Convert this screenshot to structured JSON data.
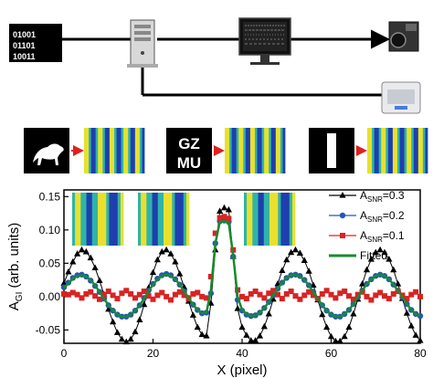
{
  "top_schematic": {
    "binary_data": [
      "01001",
      "01101",
      "10011"
    ]
  },
  "pattern_panels": [
    {
      "object_text": []
    },
    {
      "object_text": [
        "GZ",
        "MU"
      ]
    },
    {
      "object_text": []
    }
  ],
  "colors": {
    "stripe_dark": "#1f3fae",
    "stripe_mid": "#2fb4a8",
    "stripe_light": "#e9e02e",
    "arrow_red": "#e0201b",
    "series_snr03": "#000000",
    "series_snr02": "#2456b8",
    "series_snr01": "#d92323",
    "series_fitted": "#1a8a2e"
  },
  "chart_data": {
    "type": "line",
    "xlabel": "X (pixel)",
    "ylabel": "A_GI (arb. units)",
    "xlim": [
      0,
      80
    ],
    "ylim": [
      -0.07,
      0.16
    ],
    "x_ticks": [
      0,
      20,
      40,
      60,
      80
    ],
    "x_tick_labels": [
      "0",
      "20",
      "40",
      "60",
      "80"
    ],
    "y_ticks": [
      -0.05,
      0.0,
      0.05,
      0.1,
      0.15
    ],
    "y_tick_labels": [
      "-0.05",
      "0.00",
      "0.05",
      "0.10",
      "0.15"
    ],
    "legend_position": "top-right",
    "legend": [
      {
        "label": "A_SNR=0.3",
        "marker": "triangle",
        "color": "#000000"
      },
      {
        "label": "A_SNR=0.2",
        "marker": "circle",
        "color": "#2456b8"
      },
      {
        "label": "A_SNR=0.1",
        "marker": "square",
        "color": "#d92323"
      },
      {
        "label": "Fitted",
        "marker": "line",
        "color": "#1a8a2e"
      }
    ],
    "series": [
      {
        "name": "A_SNR=0.3",
        "x": [
          0,
          1,
          2,
          3,
          4,
          5,
          6,
          7,
          8,
          9,
          10,
          11,
          12,
          13,
          14,
          15,
          16,
          17,
          18,
          19,
          20,
          21,
          22,
          23,
          24,
          25,
          26,
          27,
          28,
          29,
          30,
          31,
          32,
          33,
          34,
          35,
          36,
          37,
          38,
          39,
          40,
          41,
          42,
          43,
          44,
          45,
          46,
          47,
          48,
          49,
          50,
          51,
          52,
          53,
          54,
          55,
          56,
          57,
          58,
          59,
          60,
          61,
          62,
          63,
          64,
          65,
          66,
          67,
          68,
          69,
          70,
          71,
          72,
          73,
          74,
          75,
          76,
          77,
          78,
          79,
          80
        ],
        "y": [
          0.02,
          0.037,
          0.052,
          0.064,
          0.07,
          0.067,
          0.058,
          0.043,
          0.024,
          0.003,
          -0.019,
          -0.038,
          -0.054,
          -0.064,
          -0.068,
          -0.064,
          -0.053,
          -0.035,
          -0.012,
          0.013,
          0.036,
          0.055,
          0.067,
          0.07,
          0.064,
          0.052,
          0.034,
          0.014,
          -0.007,
          -0.028,
          -0.046,
          -0.057,
          -0.059,
          -0.01,
          0.07,
          0.128,
          0.133,
          0.13,
          0.06,
          -0.018,
          -0.046,
          -0.058,
          -0.066,
          -0.066,
          -0.059,
          -0.045,
          -0.026,
          -0.004,
          0.019,
          0.039,
          0.055,
          0.066,
          0.07,
          0.065,
          0.054,
          0.038,
          0.017,
          -0.005,
          -0.027,
          -0.046,
          -0.06,
          -0.067,
          -0.067,
          -0.06,
          -0.046,
          -0.026,
          -0.004,
          0.019,
          0.04,
          0.056,
          0.066,
          0.07,
          0.066,
          0.056,
          0.04,
          0.019,
          -0.003,
          -0.025,
          -0.044,
          -0.058,
          -0.066
        ]
      },
      {
        "name": "A_SNR=0.2",
        "x": [
          0,
          1,
          2,
          3,
          4,
          5,
          6,
          7,
          8,
          9,
          10,
          11,
          12,
          13,
          14,
          15,
          16,
          17,
          18,
          19,
          20,
          21,
          22,
          23,
          24,
          25,
          26,
          27,
          28,
          29,
          30,
          31,
          32,
          33,
          34,
          35,
          36,
          37,
          38,
          39,
          40,
          41,
          42,
          43,
          44,
          45,
          46,
          47,
          48,
          49,
          50,
          51,
          52,
          53,
          54,
          55,
          56,
          57,
          58,
          59,
          60,
          61,
          62,
          63,
          64,
          65,
          66,
          67,
          68,
          69,
          70,
          71,
          72,
          73,
          74,
          75,
          76,
          77,
          78,
          79,
          80
        ],
        "y": [
          0.014,
          0.021,
          0.028,
          0.032,
          0.033,
          0.03,
          0.024,
          0.016,
          0.007,
          -0.003,
          -0.013,
          -0.021,
          -0.027,
          -0.03,
          -0.03,
          -0.027,
          -0.021,
          -0.013,
          -0.002,
          0.009,
          0.019,
          0.027,
          0.032,
          0.034,
          0.032,
          0.026,
          0.018,
          0.008,
          -0.002,
          -0.012,
          -0.02,
          -0.025,
          -0.024,
          0.005,
          0.08,
          0.113,
          0.114,
          0.112,
          0.06,
          -0.005,
          -0.021,
          -0.027,
          -0.029,
          -0.028,
          -0.024,
          -0.017,
          -0.008,
          0.002,
          0.012,
          0.021,
          0.028,
          0.032,
          0.033,
          0.031,
          0.025,
          0.017,
          0.007,
          -0.003,
          -0.013,
          -0.021,
          -0.027,
          -0.03,
          -0.03,
          -0.026,
          -0.02,
          -0.011,
          -0.001,
          0.009,
          0.019,
          0.026,
          0.031,
          0.033,
          0.031,
          0.026,
          0.018,
          0.009,
          -0.001,
          -0.011,
          -0.02,
          -0.026,
          -0.029
        ]
      },
      {
        "name": "A_SNR=0.1",
        "x": [
          0,
          1,
          2,
          3,
          4,
          5,
          6,
          7,
          8,
          9,
          10,
          11,
          12,
          13,
          14,
          15,
          16,
          17,
          18,
          19,
          20,
          21,
          22,
          23,
          24,
          25,
          26,
          27,
          28,
          29,
          30,
          31,
          32,
          33,
          34,
          35,
          36,
          37,
          38,
          39,
          40,
          41,
          42,
          43,
          44,
          45,
          46,
          47,
          48,
          49,
          50,
          51,
          52,
          53,
          54,
          55,
          56,
          57,
          58,
          59,
          60,
          61,
          62,
          63,
          64,
          65,
          66,
          67,
          68,
          69,
          70,
          71,
          72,
          73,
          74,
          75,
          76,
          77,
          78,
          79,
          80
        ],
        "y": [
          0.004,
          0.003,
          0.006,
          0.003,
          -0.002,
          0.004,
          0.007,
          0.001,
          -0.004,
          0.003,
          0.008,
          0.002,
          -0.003,
          0.005,
          0.009,
          0.004,
          -0.002,
          0.003,
          0.008,
          0.001,
          -0.004,
          0.002,
          0.006,
          0.0,
          -0.005,
          0.003,
          0.007,
          0.002,
          -0.003,
          0.004,
          0.006,
          0.0,
          -0.002,
          0.03,
          0.095,
          0.118,
          0.12,
          0.117,
          0.07,
          0.01,
          0.0,
          -0.003,
          0.004,
          0.008,
          0.003,
          -0.002,
          0.005,
          0.009,
          0.003,
          -0.003,
          0.004,
          0.008,
          0.001,
          -0.004,
          0.002,
          0.007,
          0.002,
          -0.003,
          0.004,
          0.009,
          0.003,
          -0.002,
          0.005,
          0.008,
          0.001,
          -0.004,
          0.003,
          0.007,
          0.0,
          -0.005,
          0.002,
          0.006,
          0.001,
          -0.003,
          0.004,
          0.008,
          0.002,
          -0.003,
          0.003,
          0.007,
          0.0
        ]
      },
      {
        "name": "Fitted",
        "x": [
          0,
          1,
          2,
          3,
          4,
          5,
          6,
          7,
          8,
          9,
          10,
          11,
          12,
          13,
          14,
          15,
          16,
          17,
          18,
          19,
          20,
          21,
          22,
          23,
          24,
          25,
          26,
          27,
          28,
          29,
          30,
          31,
          32,
          33,
          34,
          35,
          36,
          37,
          38,
          39,
          40,
          41,
          42,
          43,
          44,
          45,
          46,
          47,
          48,
          49,
          50,
          51,
          52,
          53,
          54,
          55,
          56,
          57,
          58,
          59,
          60,
          61,
          62,
          63,
          64,
          65,
          66,
          67,
          68,
          69,
          70,
          71,
          72,
          73,
          74,
          75,
          76,
          77,
          78,
          79,
          80
        ],
        "y": [
          0.013,
          0.02,
          0.027,
          0.031,
          0.032,
          0.03,
          0.025,
          0.017,
          0.007,
          -0.003,
          -0.013,
          -0.021,
          -0.027,
          -0.03,
          -0.03,
          -0.027,
          -0.021,
          -0.013,
          -0.003,
          0.008,
          0.018,
          0.026,
          0.031,
          0.033,
          0.031,
          0.026,
          0.018,
          0.008,
          -0.002,
          -0.012,
          -0.02,
          -0.025,
          -0.024,
          0.01,
          0.08,
          0.112,
          0.113,
          0.111,
          0.062,
          0.0,
          -0.02,
          -0.026,
          -0.029,
          -0.028,
          -0.024,
          -0.017,
          -0.008,
          0.002,
          0.012,
          0.021,
          0.028,
          0.032,
          0.033,
          0.03,
          0.025,
          0.017,
          0.007,
          -0.003,
          -0.013,
          -0.021,
          -0.027,
          -0.03,
          -0.03,
          -0.026,
          -0.02,
          -0.011,
          -0.001,
          0.009,
          0.019,
          0.026,
          0.031,
          0.033,
          0.031,
          0.026,
          0.018,
          0.009,
          -0.001,
          -0.011,
          -0.02,
          -0.026,
          -0.029
        ]
      }
    ]
  }
}
